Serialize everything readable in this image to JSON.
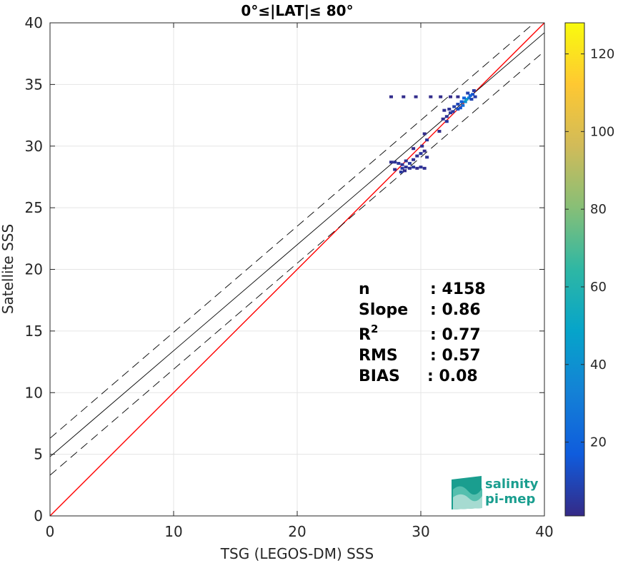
{
  "chart_data": {
    "type": "scatter",
    "title": "0°≤|LAT|≤ 80°",
    "xlabel": "TSG (LEGOS-DM) SSS",
    "ylabel": "Satellite SSS",
    "xlim": [
      0,
      40
    ],
    "ylim": [
      0,
      40
    ],
    "xticks": [
      "0",
      "10",
      "20",
      "30",
      "40"
    ],
    "yticks": [
      "0",
      "5",
      "10",
      "15",
      "20",
      "25",
      "30",
      "35",
      "40"
    ],
    "grid": true,
    "colorbar": {
      "range": [
        1,
        128
      ],
      "ticks": [
        "20",
        "40",
        "60",
        "80",
        "100",
        "120"
      ]
    },
    "lines": [
      {
        "role": "one-to-one",
        "color": "#ff0000",
        "style": "solid",
        "intercept": 0,
        "slope": 1
      },
      {
        "role": "regression",
        "color": "#000000",
        "style": "solid",
        "intercept": 4.8,
        "slope": 0.86
      },
      {
        "role": "regression-upper",
        "color": "#000000",
        "style": "dashed",
        "intercept": 6.3,
        "slope": 0.86
      },
      {
        "role": "regression-lower",
        "color": "#000000",
        "style": "dashed",
        "intercept": 3.3,
        "slope": 0.86
      }
    ],
    "density_points": [
      {
        "x": 27.6,
        "y": 28.7,
        "count": 3
      },
      {
        "x": 27.9,
        "y": 28.7,
        "count": 4
      },
      {
        "x": 28.2,
        "y": 28.6,
        "count": 5
      },
      {
        "x": 28.5,
        "y": 28.5,
        "count": 4
      },
      {
        "x": 28.8,
        "y": 28.8,
        "count": 3
      },
      {
        "x": 29.1,
        "y": 28.6,
        "count": 6
      },
      {
        "x": 29.4,
        "y": 28.9,
        "count": 3
      },
      {
        "x": 27.9,
        "y": 28.1,
        "count": 2
      },
      {
        "x": 28.5,
        "y": 28.2,
        "count": 5
      },
      {
        "x": 28.8,
        "y": 28.3,
        "count": 4
      },
      {
        "x": 29.1,
        "y": 28.2,
        "count": 3
      },
      {
        "x": 29.4,
        "y": 28.3,
        "count": 5
      },
      {
        "x": 29.7,
        "y": 28.2,
        "count": 2
      },
      {
        "x": 30.0,
        "y": 28.3,
        "count": 4
      },
      {
        "x": 30.3,
        "y": 28.2,
        "count": 3
      },
      {
        "x": 29.7,
        "y": 29.2,
        "count": 3
      },
      {
        "x": 30.0,
        "y": 29.4,
        "count": 5
      },
      {
        "x": 30.3,
        "y": 29.6,
        "count": 2
      },
      {
        "x": 30.5,
        "y": 29.1,
        "count": 4
      },
      {
        "x": 29.4,
        "y": 29.8,
        "count": 2
      },
      {
        "x": 30.1,
        "y": 30.0,
        "count": 3
      },
      {
        "x": 28.4,
        "y": 27.9,
        "count": 6
      },
      {
        "x": 28.7,
        "y": 28.0,
        "count": 2
      },
      {
        "x": 30.5,
        "y": 30.5,
        "count": 3
      },
      {
        "x": 30.3,
        "y": 31.0,
        "count": 2
      },
      {
        "x": 31.8,
        "y": 32.2,
        "count": 3
      },
      {
        "x": 32.1,
        "y": 32.4,
        "count": 4
      },
      {
        "x": 32.4,
        "y": 32.7,
        "count": 5
      },
      {
        "x": 32.7,
        "y": 33.2,
        "count": 8
      },
      {
        "x": 33.0,
        "y": 33.0,
        "count": 12
      },
      {
        "x": 33.0,
        "y": 33.4,
        "count": 10
      },
      {
        "x": 33.3,
        "y": 33.6,
        "count": 18
      },
      {
        "x": 33.4,
        "y": 33.3,
        "count": 25
      },
      {
        "x": 33.6,
        "y": 33.6,
        "count": 40
      },
      {
        "x": 33.7,
        "y": 33.8,
        "count": 52
      },
      {
        "x": 33.9,
        "y": 33.9,
        "count": 30
      },
      {
        "x": 34.0,
        "y": 34.1,
        "count": 22
      },
      {
        "x": 34.2,
        "y": 34.2,
        "count": 14
      },
      {
        "x": 33.5,
        "y": 33.9,
        "count": 20
      },
      {
        "x": 33.2,
        "y": 33.1,
        "count": 15
      },
      {
        "x": 34.1,
        "y": 33.8,
        "count": 9
      },
      {
        "x": 32.6,
        "y": 32.8,
        "count": 6
      },
      {
        "x": 32.3,
        "y": 33.0,
        "count": 4
      },
      {
        "x": 31.9,
        "y": 32.9,
        "count": 3
      },
      {
        "x": 34.3,
        "y": 34.5,
        "count": 6
      },
      {
        "x": 33.8,
        "y": 34.3,
        "count": 8
      },
      {
        "x": 33.0,
        "y": 34.0,
        "count": 2
      },
      {
        "x": 32.4,
        "y": 34.0,
        "count": 2
      },
      {
        "x": 31.6,
        "y": 34.0,
        "count": 2
      },
      {
        "x": 30.8,
        "y": 34.0,
        "count": 2
      },
      {
        "x": 29.6,
        "y": 34.0,
        "count": 2
      },
      {
        "x": 28.6,
        "y": 34.0,
        "count": 2
      },
      {
        "x": 27.6,
        "y": 34.0,
        "count": 2
      },
      {
        "x": 34.4,
        "y": 34.0,
        "count": 7
      },
      {
        "x": 32.1,
        "y": 32.0,
        "count": 5
      },
      {
        "x": 31.5,
        "y": 31.2,
        "count": 2
      }
    ]
  },
  "stats": [
    {
      "label": "n",
      "value": ": 4158"
    },
    {
      "label": "Slope",
      "value": ": 0.86"
    },
    {
      "label": "R",
      "sup": "2",
      "value": ": 0.77"
    },
    {
      "label": "RMS",
      "value": ": 0.57"
    },
    {
      "label": "BIAS",
      "value": ": 0.08"
    }
  ],
  "logo": {
    "line1": "salinity",
    "line2": "pi-mep",
    "color": "#1a9e8f"
  }
}
